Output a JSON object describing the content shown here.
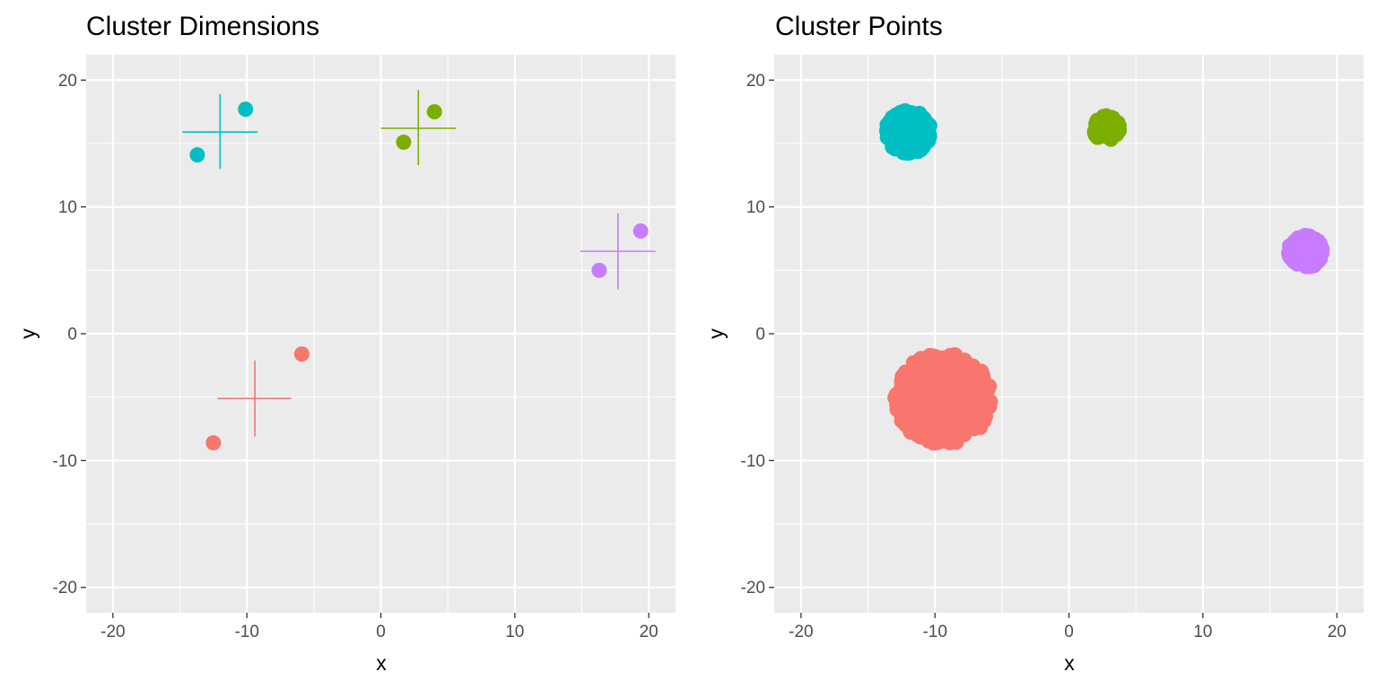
{
  "chart_data": [
    {
      "type": "scatter",
      "title": "Cluster Dimensions",
      "xlabel": "x",
      "ylabel": "y",
      "xlim": [
        -22,
        22
      ],
      "ylim": [
        -22,
        22
      ],
      "xticks": [
        -20,
        -10,
        0,
        10,
        20
      ],
      "yticks": [
        -20,
        -10,
        0,
        10,
        20
      ],
      "grid": true,
      "legend": "none",
      "series": [
        {
          "color": "#F8766D",
          "points": [
            {
              "x": -12.5,
              "y": -8.6
            },
            {
              "x": -5.9,
              "y": -1.6
            }
          ],
          "cross": {
            "cx": -9.4,
            "cy": -5.1,
            "xmin": -12.2,
            "xmax": -6.7,
            "ymin": -8.1,
            "ymax": -2.1
          }
        },
        {
          "color": "#7CAE00",
          "points": [
            {
              "x": 1.7,
              "y": 15.1
            },
            {
              "x": 4.0,
              "y": 17.5
            }
          ],
          "cross": {
            "cx": 2.8,
            "cy": 16.2,
            "xmin": 0.0,
            "xmax": 5.6,
            "ymin": 13.3,
            "ymax": 19.2
          }
        },
        {
          "color": "#00BFC4",
          "points": [
            {
              "x": -13.7,
              "y": 14.1
            },
            {
              "x": -10.1,
              "y": 17.7
            }
          ],
          "cross": {
            "cx": -12.0,
            "cy": 15.9,
            "xmin": -14.8,
            "xmax": -9.2,
            "ymin": 13.0,
            "ymax": 18.9
          }
        },
        {
          "color": "#C77CFF",
          "points": [
            {
              "x": 16.3,
              "y": 5.0
            },
            {
              "x": 19.4,
              "y": 8.1
            }
          ],
          "cross": {
            "cx": 17.7,
            "cy": 6.5,
            "xmin": 14.9,
            "xmax": 20.5,
            "ymin": 3.5,
            "ymax": 9.5
          }
        }
      ]
    },
    {
      "type": "scatter",
      "title": "Cluster Points",
      "xlabel": "x",
      "ylabel": "y",
      "xlim": [
        -22,
        22
      ],
      "ylim": [
        -22,
        22
      ],
      "xticks": [
        -20,
        -10,
        0,
        10,
        20
      ],
      "yticks": [
        -20,
        -10,
        0,
        10,
        20
      ],
      "grid": true,
      "legend": "none",
      "series": [
        {
          "color": "#F8766D",
          "center": [
            -9.4,
            -5.1
          ],
          "radius": 3.6,
          "n": 500
        },
        {
          "color": "#7CAE00",
          "center": [
            2.8,
            16.2
          ],
          "radius": 1.0,
          "n": 100
        },
        {
          "color": "#00BFC4",
          "center": [
            -12.0,
            15.9
          ],
          "radius": 1.7,
          "n": 300
        },
        {
          "color": "#C77CFF",
          "center": [
            17.7,
            6.5
          ],
          "radius": 1.3,
          "n": 150
        }
      ]
    }
  ]
}
